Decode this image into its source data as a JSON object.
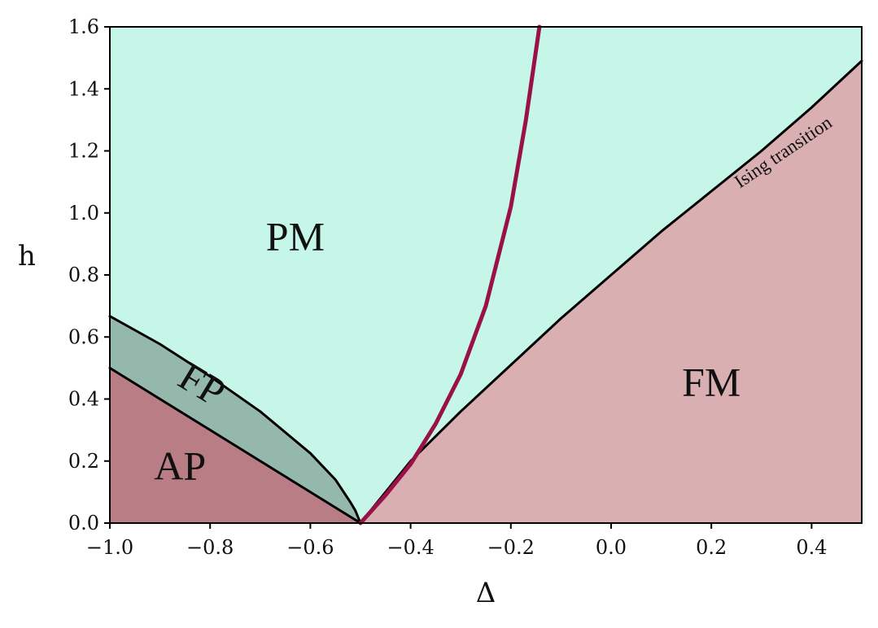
{
  "chart_data": {
    "type": "area",
    "xlabel": "Δ",
    "ylabel": "h",
    "xlim": [
      -1.0,
      0.5
    ],
    "ylim": [
      0.0,
      1.6
    ],
    "xticks": [
      -1.0,
      -0.8,
      -0.6,
      -0.4,
      -0.2,
      0.0,
      0.2,
      0.4
    ],
    "xtick_labels": [
      "−1.0",
      "−0.8",
      "−0.6",
      "−0.4",
      "−0.2",
      "0.0",
      "0.2",
      "0.4"
    ],
    "yticks": [
      0.0,
      0.2,
      0.4,
      0.6,
      0.8,
      1.0,
      1.2,
      1.4,
      1.6
    ],
    "ytick_labels": [
      "0.0",
      "0.2",
      "0.4",
      "0.6",
      "0.8",
      "1.0",
      "1.2",
      "1.4",
      "1.6"
    ],
    "grid": false,
    "regions": [
      {
        "label": "PM",
        "color": "#c5f6e7",
        "label_at": [
          -0.63,
          0.88
        ]
      },
      {
        "label": "FP",
        "color": "#95b8ad",
        "label_at": [
          -0.83,
          0.41
        ],
        "label_rotation": 31
      },
      {
        "label": "AP",
        "color": "#b97d86",
        "label_at": [
          -0.86,
          0.14
        ]
      },
      {
        "label": "FM",
        "color": "#d9afb1",
        "label_at": [
          0.2,
          0.41
        ]
      }
    ],
    "boundaries": [
      {
        "name": "AP-FP",
        "color": "#000000",
        "x": [
          -1.0,
          -0.5
        ],
        "y": [
          0.5,
          0.0
        ]
      },
      {
        "name": "FP-PM",
        "color": "#000000",
        "x": [
          -1.0,
          -0.9,
          -0.8,
          -0.7,
          -0.6,
          -0.55,
          -0.52,
          -0.51,
          -0.5
        ],
        "y": [
          0.667,
          0.577,
          0.473,
          0.36,
          0.225,
          0.14,
          0.067,
          0.04,
          0.0
        ]
      },
      {
        "name": "Ising transition",
        "color": "#000000",
        "label": "Ising transition",
        "x": [
          -0.5,
          -0.45,
          -0.4,
          -0.3,
          -0.2,
          -0.1,
          0.0,
          0.1,
          0.2,
          0.3,
          0.4,
          0.5
        ],
        "y": [
          0.0,
          0.1,
          0.2,
          0.36,
          0.51,
          0.66,
          0.8,
          0.94,
          1.07,
          1.2,
          1.34,
          1.49
        ]
      },
      {
        "name": "crimson curve",
        "color": "#9a1148",
        "x": [
          -0.5,
          -0.45,
          -0.4,
          -0.35,
          -0.3,
          -0.25,
          -0.2,
          -0.17,
          -0.143
        ],
        "y": [
          0.0,
          0.09,
          0.19,
          0.32,
          0.48,
          0.7,
          1.02,
          1.3,
          1.6
        ]
      }
    ]
  }
}
